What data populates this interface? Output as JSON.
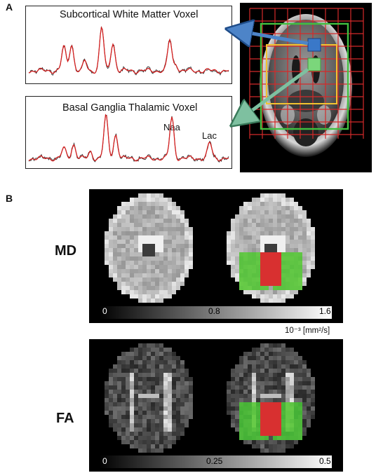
{
  "panel_a": {
    "letter": "A",
    "spectrum_top": {
      "title": "Subcortical White Matter Voxel"
    },
    "spectrum_bottom": {
      "title": "Basal Ganglia Thalamic Voxel",
      "peak_labels": [
        "Naa",
        "Lac"
      ]
    },
    "colors": {
      "fit_line": "#d42020",
      "raw_line": "#333333",
      "grid_red": "#d42a2a",
      "grid_yellow": "#f2c230",
      "grid_green": "#40c040",
      "voxel_blue": "#3a78c8",
      "voxel_green": "#7bd67b"
    }
  },
  "panel_b": {
    "letter": "B",
    "rows": [
      {
        "label": "MD",
        "colorbar": {
          "min": "0",
          "mid": "0.8",
          "max": "1.6"
        },
        "unit": "10⁻³ [mm²/s]"
      },
      {
        "label": "FA",
        "colorbar": {
          "min": "0",
          "mid": "0.25",
          "max": "0.5"
        }
      }
    ],
    "colors": {
      "roi_green": "#4cc040",
      "roi_red": "#d83030"
    }
  }
}
